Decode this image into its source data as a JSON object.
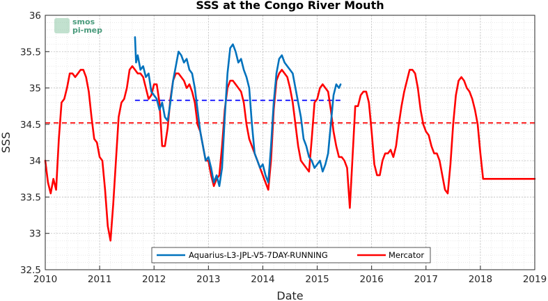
{
  "colors": {
    "aquarius": "#0072BD",
    "mercator": "#FF0000",
    "aquarius_mean": "#0000FF",
    "mercator_mean": "#FF0000",
    "logo": "#4a9b7c"
  },
  "logo": {
    "line1": "smos",
    "line2": "pi-mep"
  },
  "chart_data": {
    "type": "line",
    "title": "SSS at the Congo River Mouth",
    "xlabel": "Date",
    "ylabel": "SSS",
    "xlim": [
      2010,
      2019
    ],
    "ylim": [
      32.5,
      36
    ],
    "xticks": [
      "2010",
      "2011",
      "2012",
      "2013",
      "2014",
      "2015",
      "2016",
      "2017",
      "2018",
      "2019"
    ],
    "yticks": [
      "32.5",
      "33",
      "33.5",
      "34",
      "34.5",
      "35",
      "35.5",
      "36"
    ],
    "grid": true,
    "minor_grid": true,
    "legend_position": "bottom-center",
    "series": [
      {
        "name": "Aquarius-L3-JPL-V5-7DAY-RUNNING",
        "color": "#0072BD",
        "x": [
          2011.65,
          2011.67,
          2011.7,
          2011.75,
          2011.8,
          2011.85,
          2011.9,
          2011.95,
          2012.0,
          2012.05,
          2012.1,
          2012.15,
          2012.2,
          2012.25,
          2012.3,
          2012.35,
          2012.4,
          2012.45,
          2012.5,
          2012.55,
          2012.6,
          2012.65,
          2012.7,
          2012.75,
          2012.8,
          2012.85,
          2012.9,
          2012.95,
          2013.0,
          2013.05,
          2013.1,
          2013.15,
          2013.2,
          2013.25,
          2013.3,
          2013.35,
          2013.4,
          2013.45,
          2013.5,
          2013.55,
          2013.6,
          2013.65,
          2013.7,
          2013.75,
          2013.8,
          2013.85,
          2013.9,
          2013.95,
          2014.0,
          2014.05,
          2014.1,
          2014.15,
          2014.2,
          2014.25,
          2014.3,
          2014.35,
          2014.4,
          2014.45,
          2014.5,
          2014.55,
          2014.6,
          2014.65,
          2014.7,
          2014.75,
          2014.8,
          2014.85,
          2014.9,
          2014.95,
          2015.0,
          2015.05,
          2015.1,
          2015.15,
          2015.2,
          2015.25,
          2015.3,
          2015.35,
          2015.4,
          2015.43
        ],
        "y": [
          35.7,
          35.35,
          35.45,
          35.25,
          35.3,
          35.15,
          35.2,
          34.95,
          34.9,
          34.85,
          34.7,
          34.8,
          34.6,
          34.55,
          34.8,
          35.1,
          35.3,
          35.5,
          35.45,
          35.35,
          35.4,
          35.25,
          35.2,
          35.0,
          34.7,
          34.4,
          34.2,
          34.0,
          34.05,
          33.9,
          33.7,
          33.8,
          33.65,
          33.9,
          34.6,
          35.2,
          35.55,
          35.6,
          35.5,
          35.35,
          35.4,
          35.25,
          35.15,
          35.0,
          34.5,
          34.1,
          34.0,
          33.9,
          33.95,
          33.8,
          33.7,
          34.2,
          34.8,
          35.2,
          35.4,
          35.45,
          35.35,
          35.3,
          35.25,
          35.2,
          35.0,
          34.8,
          34.6,
          34.3,
          34.2,
          34.05,
          34.0,
          33.9,
          33.95,
          34.0,
          33.85,
          33.95,
          34.1,
          34.5,
          34.9,
          35.05,
          35.0,
          35.05
        ]
      },
      {
        "name": "Mercator",
        "color": "#FF0000",
        "x": [
          2010.0,
          2010.05,
          2010.1,
          2010.15,
          2010.2,
          2010.25,
          2010.3,
          2010.35,
          2010.4,
          2010.45,
          2010.5,
          2010.55,
          2010.6,
          2010.65,
          2010.7,
          2010.75,
          2010.8,
          2010.85,
          2010.9,
          2010.95,
          2011.0,
          2011.05,
          2011.1,
          2011.15,
          2011.2,
          2011.25,
          2011.3,
          2011.35,
          2011.4,
          2011.45,
          2011.5,
          2011.55,
          2011.6,
          2011.65,
          2011.7,
          2011.75,
          2011.8,
          2011.85,
          2011.9,
          2011.95,
          2012.0,
          2012.05,
          2012.1,
          2012.15,
          2012.2,
          2012.25,
          2012.3,
          2012.35,
          2012.4,
          2012.45,
          2012.5,
          2012.55,
          2012.6,
          2012.65,
          2012.7,
          2012.75,
          2012.8,
          2012.85,
          2012.9,
          2012.95,
          2013.0,
          2013.05,
          2013.1,
          2013.15,
          2013.2,
          2013.25,
          2013.3,
          2013.35,
          2013.4,
          2013.45,
          2013.5,
          2013.55,
          2013.6,
          2013.65,
          2013.7,
          2013.75,
          2013.8,
          2013.85,
          2013.9,
          2013.95,
          2014.0,
          2014.05,
          2014.1,
          2014.15,
          2014.2,
          2014.25,
          2014.3,
          2014.35,
          2014.4,
          2014.45,
          2014.5,
          2014.55,
          2014.6,
          2014.65,
          2014.7,
          2014.75,
          2014.8,
          2014.85,
          2014.9,
          2014.95,
          2015.0,
          2015.05,
          2015.1,
          2015.15,
          2015.2,
          2015.25,
          2015.3,
          2015.35,
          2015.4,
          2015.45,
          2015.5,
          2015.55,
          2015.6,
          2015.65,
          2015.7,
          2015.75,
          2015.8,
          2015.85,
          2015.9,
          2015.95,
          2016.0,
          2016.05,
          2016.1,
          2016.15,
          2016.2,
          2016.25,
          2016.3,
          2016.35,
          2016.4,
          2016.45,
          2016.5,
          2016.55,
          2016.6,
          2016.65,
          2016.7,
          2016.75,
          2016.8,
          2016.85,
          2016.9,
          2016.95,
          2017.0,
          2017.05,
          2017.1,
          2017.15,
          2017.2,
          2017.25,
          2017.3,
          2017.35,
          2017.4,
          2017.45,
          2017.5,
          2017.55,
          2017.6,
          2017.65,
          2017.7,
          2017.75,
          2017.8,
          2017.85,
          2017.9,
          2017.95,
          2018.0,
          2018.05,
          2018.1,
          2018.15,
          2018.2,
          2018.25,
          2018.3,
          2018.35,
          2018.4,
          2018.45,
          2018.5,
          2018.55,
          2018.6,
          2018.65,
          2018.7,
          2018.75,
          2018.8,
          2018.85,
          2018.9,
          2018.95,
          2019.0
        ],
        "y": [
          34.0,
          33.7,
          33.55,
          33.75,
          33.6,
          34.3,
          34.8,
          34.85,
          35.0,
          35.2,
          35.2,
          35.15,
          35.2,
          35.25,
          35.25,
          35.15,
          34.95,
          34.6,
          34.3,
          34.25,
          34.05,
          34.0,
          33.6,
          33.1,
          32.9,
          33.4,
          34.0,
          34.6,
          34.8,
          34.85,
          35.0,
          35.25,
          35.3,
          35.25,
          35.2,
          35.2,
          35.15,
          35.0,
          34.85,
          34.9,
          35.05,
          35.05,
          34.8,
          34.2,
          34.2,
          34.45,
          34.85,
          35.1,
          35.2,
          35.2,
          35.15,
          35.1,
          35.0,
          35.05,
          34.95,
          34.8,
          34.5,
          34.4,
          34.2,
          34.0,
          34.0,
          33.8,
          33.65,
          33.75,
          33.8,
          34.2,
          34.7,
          35.0,
          35.1,
          35.1,
          35.05,
          35.0,
          34.95,
          34.8,
          34.5,
          34.3,
          34.2,
          34.1,
          34.0,
          33.9,
          33.8,
          33.7,
          33.6,
          34.0,
          34.7,
          35.1,
          35.2,
          35.25,
          35.2,
          35.15,
          35.0,
          34.8,
          34.5,
          34.2,
          34.0,
          33.95,
          33.9,
          33.85,
          34.3,
          34.8,
          34.85,
          35.0,
          35.05,
          35.0,
          34.95,
          34.7,
          34.4,
          34.2,
          34.05,
          34.05,
          34.0,
          33.9,
          33.35,
          34.05,
          34.75,
          34.75,
          34.9,
          34.95,
          34.95,
          34.8,
          34.4,
          33.95,
          33.8,
          33.8,
          34.0,
          34.1,
          34.1,
          34.15,
          34.05,
          34.2,
          34.5,
          34.75,
          34.95,
          35.1,
          35.25,
          35.25,
          35.2,
          35.0,
          34.7,
          34.5,
          34.4,
          34.35,
          34.2,
          34.1,
          34.1,
          34.0,
          33.8,
          33.6,
          33.55,
          33.95,
          34.5,
          34.9,
          35.1,
          35.15,
          35.1,
          35.0,
          34.95,
          34.85,
          34.7,
          34.5,
          34.1,
          33.75,
          33.75,
          33.75,
          33.75,
          33.75,
          33.75,
          33.75,
          33.75,
          33.75,
          33.75,
          33.75,
          33.75,
          33.75,
          33.75,
          33.75,
          33.75,
          33.75,
          33.75,
          33.75,
          33.75
        ]
      }
    ],
    "reference_lines": [
      {
        "series": "Aquarius-L3-JPL-V5-7DAY-RUNNING",
        "y": 34.83,
        "x_start": 2011.65,
        "x_end": 2015.43,
        "color": "#0000FF",
        "style": "dashed"
      },
      {
        "series": "Mercator",
        "y": 34.52,
        "x_start": 2010.0,
        "x_end": 2019.0,
        "color": "#FF0000",
        "style": "dashed"
      }
    ]
  }
}
